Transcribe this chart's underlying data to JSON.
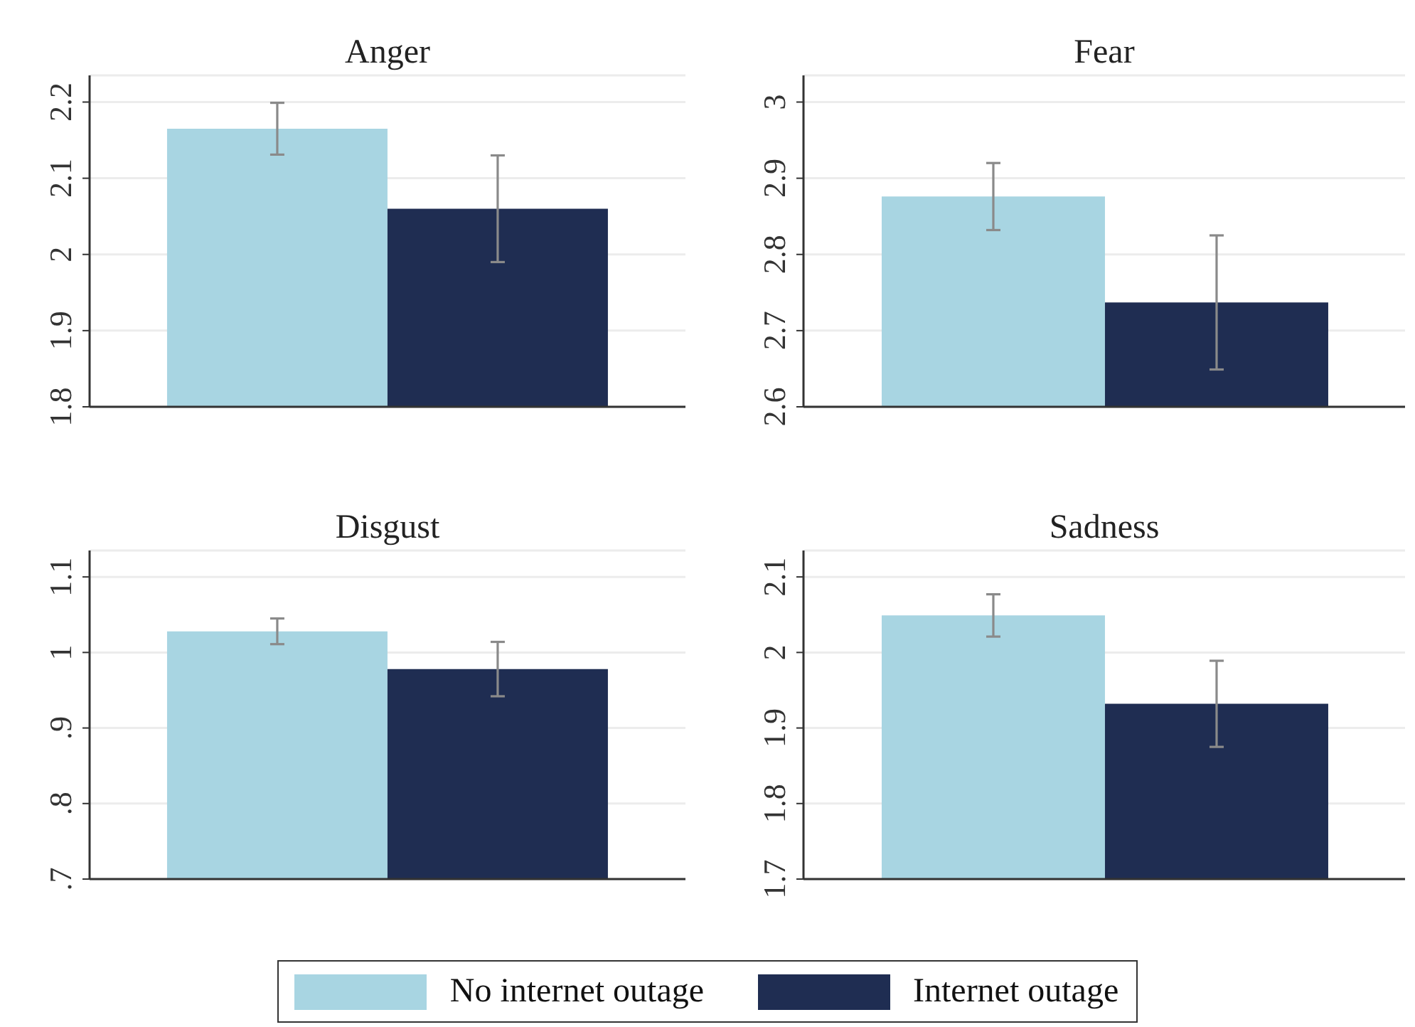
{
  "chart_data": [
    {
      "type": "bar",
      "title": "Anger",
      "categories": [
        null
      ],
      "series": [
        {
          "color": "#a8d5e2",
          "values": [
            2.165
          ],
          "errors": [
            0.034
          ]
        },
        {
          "color": "#1f2d52",
          "values": [
            2.06
          ],
          "errors": [
            0.07
          ]
        }
      ],
      "ylim": [
        1.8,
        2.235
      ],
      "yticks": [
        1.8,
        1.9,
        2,
        2.1,
        2.2
      ],
      "grid": "y"
    },
    {
      "type": "bar",
      "title": "Fear",
      "categories": [
        null
      ],
      "series": [
        {
          "color": "#a8d5e2",
          "values": [
            2.876
          ],
          "errors": [
            0.044
          ]
        },
        {
          "color": "#1f2d52",
          "values": [
            2.737
          ],
          "errors": [
            0.088
          ]
        }
      ],
      "ylim": [
        2.6,
        3.035
      ],
      "yticks": [
        2.6,
        2.7,
        2.8,
        2.9,
        3
      ],
      "grid": "y"
    },
    {
      "type": "bar",
      "title": "Disgust",
      "categories": [
        null
      ],
      "series": [
        {
          "color": "#a8d5e2",
          "values": [
            1.028
          ],
          "errors": [
            0.017
          ]
        },
        {
          "color": "#1f2d52",
          "values": [
            0.978
          ],
          "errors": [
            0.036
          ]
        }
      ],
      "ylim": [
        0.7,
        1.135
      ],
      "yticks": [
        {
          "value": 0.7,
          "label": ".7"
        },
        {
          "value": 0.8,
          "label": ".8"
        },
        {
          "value": 0.9,
          "label": ".9"
        },
        1,
        1.1
      ],
      "grid": "y"
    },
    {
      "type": "bar",
      "title": "Sadness",
      "categories": [
        null
      ],
      "series": [
        {
          "name": "No internet outage",
          "color": "#a8d5e2",
          "values": [
            2.049
          ],
          "errors": [
            0.028
          ]
        },
        {
          "name": "Internet outage",
          "color": "#1f2d52",
          "values": [
            1.932
          ],
          "errors": [
            0.057
          ]
        }
      ],
      "ylim": [
        1.7,
        2.135
      ],
      "yticks": [
        1.7,
        1.8,
        1.9,
        2,
        2.1
      ],
      "grid": "y",
      "legend": "bottom"
    }
  ]
}
